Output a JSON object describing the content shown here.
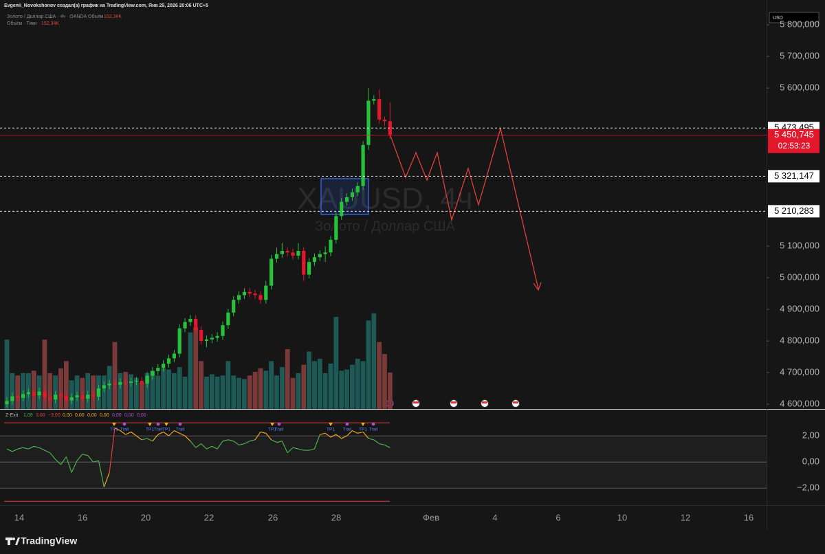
{
  "header": {
    "author_line": "Evgenii_Novokshonov создал(а) график на TradingView.com, Янв 29, 2026 20:06 UTC+5"
  },
  "footer": {
    "brand": "TradingView"
  },
  "chart_data": {
    "type": "candlestick",
    "symbol_line": "Золото / Доллар США · 4ч · OANDA",
    "volume_label": "Объём",
    "volume_value": "152,34K",
    "ticks_line": "Объём · Тики",
    "ticks_value": "152,34K",
    "watermark": "XAUUSD, 4ч",
    "watermark_subtitle": "Золото / Доллар США",
    "currency": "USD",
    "x_labels": [
      "14",
      "16",
      "20",
      "22",
      "26",
      "28",
      "Фев",
      "4",
      "6",
      "10",
      "12",
      "16"
    ],
    "open": [
      4600,
      4610,
      4625,
      4620,
      4632,
      4638,
      4628,
      4640,
      4622,
      4615,
      4630,
      4625,
      4612,
      4622,
      4628,
      4618,
      4630,
      4624,
      4650,
      4660,
      4665,
      4662,
      4670,
      4668,
      4672,
      4674,
      4665,
      4690,
      4705,
      4715,
      4728,
      4745,
      4760,
      4840,
      4860,
      4870,
      4835,
      4800,
      4805,
      4810,
      4816,
      4850,
      4890,
      4930,
      4945,
      4955,
      4950,
      4945,
      4930,
      4975,
      5060,
      5075,
      5085,
      5080,
      5070,
      5085,
      5010,
      5050,
      5065,
      5075,
      5080,
      5120,
      5195,
      5240,
      5255,
      5270,
      5290,
      5420,
      5560,
      5565,
      5500,
      5495
    ],
    "high": [
      4622,
      4637,
      4637,
      4644,
      4650,
      4650,
      4652,
      4652,
      4634,
      4642,
      4642,
      4637,
      4634,
      4640,
      4640,
      4642,
      4642,
      4662,
      4672,
      4677,
      4677,
      4682,
      4682,
      4684,
      4686,
      4686,
      4702,
      4717,
      4727,
      4740,
      4757,
      4772,
      4852,
      4872,
      4882,
      4882,
      4847,
      4817,
      4822,
      4828,
      4862,
      4902,
      4942,
      4957,
      4967,
      4967,
      4962,
      4957,
      4990,
      5072,
      5095,
      5110,
      5097,
      5092,
      5110,
      5097,
      5062,
      5077,
      5087,
      5100,
      5132,
      5207,
      5252,
      5267,
      5282,
      5302,
      5432,
      5600,
      5577,
      5595,
      5510,
      5555
    ],
    "low": [
      4590,
      4598,
      4608,
      4608,
      4620,
      4616,
      4616,
      4610,
      4603,
      4603,
      4613,
      4600,
      4600,
      4610,
      4606,
      4606,
      4612,
      4612,
      4638,
      4648,
      4650,
      4650,
      4656,
      4656,
      4660,
      4653,
      4653,
      4678,
      4693,
      4703,
      4716,
      4733,
      4748,
      4828,
      4848,
      4823,
      4788,
      4780,
      4793,
      4798,
      4804,
      4838,
      4878,
      4918,
      4933,
      4938,
      4933,
      4918,
      4918,
      4963,
      5048,
      5063,
      5068,
      5058,
      5058,
      4990,
      4998,
      5038,
      5053,
      5050,
      5068,
      5108,
      5183,
      5228,
      5243,
      5258,
      5278,
      5405,
      5548,
      5488,
      5480,
      5440
    ],
    "close": [
      4610,
      4625,
      4620,
      4632,
      4638,
      4628,
      4640,
      4622,
      4615,
      4630,
      4625,
      4612,
      4622,
      4628,
      4618,
      4630,
      4624,
      4650,
      4660,
      4665,
      4662,
      4670,
      4668,
      4672,
      4674,
      4665,
      4690,
      4705,
      4715,
      4728,
      4745,
      4760,
      4840,
      4860,
      4870,
      4835,
      4800,
      4805,
      4810,
      4816,
      4850,
      4890,
      4930,
      4945,
      4955,
      4950,
      4945,
      4930,
      4975,
      5060,
      5075,
      5085,
      5080,
      5070,
      5085,
      5010,
      5050,
      5065,
      5075,
      5080,
      5120,
      5195,
      5240,
      5255,
      5270,
      5290,
      5420,
      5560,
      5565,
      5500,
      5495,
      5450.745
    ],
    "up_color": "#27c23c",
    "down_color": "#e3182d",
    "volume": [
      290,
      150,
      140,
      150,
      150,
      160,
      140,
      290,
      150,
      140,
      170,
      200,
      120,
      140,
      130,
      150,
      140,
      140,
      140,
      180,
      280,
      150,
      155,
      145,
      130,
      110,
      150,
      160,
      140,
      170,
      165,
      150,
      175,
      135,
      320,
      340,
      200,
      135,
      145,
      135,
      140,
      200,
      140,
      130,
      125,
      140,
      155,
      170,
      160,
      200,
      140,
      175,
      250,
      130,
      150,
      185,
      240,
      200,
      210,
      150,
      190,
      385,
      160,
      165,
      185,
      210,
      200,
      370,
      400,
      280,
      230,
      152.34
    ],
    "volume_up_color": "#1d5a56",
    "volume_down_color": "#7a3a3a",
    "ylim": [
      4585,
      5848
    ],
    "yticks": [
      {
        "value": 4600,
        "label": "4 600,000"
      },
      {
        "value": 4700,
        "label": "4 700,000"
      },
      {
        "value": 4800,
        "label": "4 800,000"
      },
      {
        "value": 4900,
        "label": "4 900,000"
      },
      {
        "value": 5000,
        "label": "5 000,000"
      },
      {
        "value": 5100,
        "label": "5 100,000"
      },
      {
        "value": 5600,
        "label": "5 600,000"
      },
      {
        "value": 5700,
        "label": "5 700,000"
      },
      {
        "value": 5800,
        "label": "5 800,000"
      }
    ],
    "price_levels": [
      {
        "value": 5473.495,
        "label": "5 473,495"
      },
      {
        "value": 5321.147,
        "label": "5 321,147"
      },
      {
        "value": 5210.283,
        "label": "5 210,283"
      }
    ],
    "last_price": {
      "value": 5450.745,
      "label": "5 450,745"
    },
    "countdown": "02:53:23",
    "oscillator": {
      "name": "Z-Exit",
      "legend_values": [
        "1,09",
        "3,00",
        "−3,00",
        "0,00",
        "0,00",
        "0,00",
        "0,00",
        "0,00",
        "0,00",
        "0,00"
      ],
      "legend_colors": [
        "#4caf50",
        "#e0403a",
        "#e0403a",
        "#f5a623",
        "#f5a623",
        "#f5a623",
        "#f5a623",
        "#b04fd6",
        "#b04fd6",
        "#b04fd6"
      ],
      "values": [
        1.0,
        0.8,
        1.0,
        1.1,
        1.0,
        1.2,
        1.1,
        0.9,
        0.7,
        0.2,
        -0.2,
        0.4,
        -0.8,
        0.1,
        0.6,
        0.5,
        0.0,
        0.1,
        -1.9,
        -0.8,
        2.6,
        2.4,
        2.1,
        2.3,
        2.0,
        1.7,
        1.8,
        1.6,
        2.1,
        2.3,
        2.0,
        2.4,
        2.2,
        2.0,
        1.6,
        1.1,
        1.4,
        1.0,
        1.2,
        1.0,
        1.6,
        1.7,
        1.6,
        1.3,
        1.4,
        1.6,
        1.7,
        2.3,
        2.2,
        1.7,
        1.5,
        1.6,
        0.7,
        1.1,
        1.0,
        0.9,
        0.9,
        1.0,
        2.1,
        2.2,
        1.9,
        2.1,
        1.8,
        2.0,
        2.4,
        2.2,
        2.3,
        1.8,
        1.7,
        1.4,
        1.3,
        1.09
      ],
      "color": "#4caf50",
      "extreme_color": "#f5a623",
      "ylim": [
        -3.3,
        3.95
      ],
      "yticks": [
        {
          "value": 2,
          "label": "2,00"
        },
        {
          "value": 0,
          "label": "0,00"
        },
        {
          "value": -2,
          "label": "−2,00"
        }
      ],
      "levels": [
        3,
        -3
      ],
      "level_color": "#e0403a",
      "signals": [
        "TP1",
        "Trail",
        "TP1",
        "Trail",
        "TP1",
        "Trail",
        "TP1",
        "Trail",
        "TP1",
        "Trail",
        "TP1",
        "Trail"
      ]
    }
  }
}
